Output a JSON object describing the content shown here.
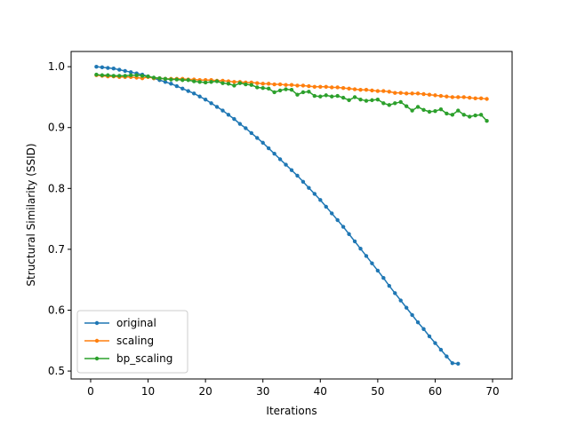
{
  "chart_data": {
    "type": "line",
    "title": "",
    "xlabel": "Iterations",
    "ylabel": "Structural Similarity (SSID)",
    "xlim": [
      -3.4,
      73.4
    ],
    "ylim": [
      0.487,
      1.025
    ],
    "xticks": [
      0,
      10,
      20,
      30,
      40,
      50,
      60,
      70
    ],
    "yticks": [
      0.5,
      0.6,
      0.7,
      0.8,
      0.9,
      1.0
    ],
    "ytick_labels": [
      "0.5",
      "0.6",
      "0.7",
      "0.8",
      "0.9",
      "1.0"
    ],
    "grid": false,
    "legend_position": "lower-left",
    "series": [
      {
        "name": "original",
        "color": "#1f77b4",
        "x": [
          1,
          2,
          3,
          4,
          5,
          6,
          7,
          8,
          9,
          10,
          11,
          12,
          13,
          14,
          15,
          16,
          17,
          18,
          19,
          20,
          21,
          22,
          23,
          24,
          25,
          26,
          27,
          28,
          29,
          30,
          31,
          32,
          33,
          34,
          35,
          36,
          37,
          38,
          39,
          40,
          41,
          42,
          43,
          44,
          45,
          46,
          47,
          48,
          49,
          50,
          51,
          52,
          53,
          54,
          55,
          56,
          57,
          58,
          59,
          60,
          61,
          62,
          63,
          64
        ],
        "y": [
          1.0,
          0.999,
          0.998,
          0.997,
          0.995,
          0.993,
          0.991,
          0.989,
          0.987,
          0.984,
          0.981,
          0.978,
          0.975,
          0.972,
          0.968,
          0.964,
          0.96,
          0.956,
          0.951,
          0.946,
          0.94,
          0.934,
          0.928,
          0.921,
          0.914,
          0.906,
          0.899,
          0.891,
          0.883,
          0.875,
          0.866,
          0.857,
          0.848,
          0.839,
          0.83,
          0.821,
          0.811,
          0.801,
          0.791,
          0.781,
          0.77,
          0.759,
          0.748,
          0.737,
          0.725,
          0.713,
          0.701,
          0.689,
          0.677,
          0.665,
          0.653,
          0.64,
          0.628,
          0.616,
          0.604,
          0.592,
          0.58,
          0.569,
          0.557,
          0.546,
          0.535,
          0.524,
          0.513,
          0.512
        ]
      },
      {
        "name": "scaling",
        "color": "#ff7f0e",
        "x": [
          1,
          2,
          3,
          4,
          5,
          6,
          7,
          8,
          9,
          10,
          11,
          12,
          13,
          14,
          15,
          16,
          17,
          18,
          19,
          20,
          21,
          22,
          23,
          24,
          25,
          26,
          27,
          28,
          29,
          30,
          31,
          32,
          33,
          34,
          35,
          36,
          37,
          38,
          39,
          40,
          41,
          42,
          43,
          44,
          45,
          46,
          47,
          48,
          49,
          50,
          51,
          52,
          53,
          54,
          55,
          56,
          57,
          58,
          59,
          60,
          61,
          62,
          63,
          64,
          65,
          66,
          67,
          68,
          69
        ],
        "y": [
          0.986,
          0.985,
          0.984,
          0.984,
          0.983,
          0.983,
          0.983,
          0.982,
          0.981,
          0.983,
          0.981,
          0.981,
          0.98,
          0.98,
          0.98,
          0.98,
          0.979,
          0.979,
          0.978,
          0.978,
          0.978,
          0.977,
          0.977,
          0.976,
          0.975,
          0.975,
          0.974,
          0.974,
          0.973,
          0.972,
          0.972,
          0.971,
          0.971,
          0.97,
          0.97,
          0.969,
          0.969,
          0.968,
          0.967,
          0.967,
          0.967,
          0.966,
          0.966,
          0.965,
          0.964,
          0.963,
          0.962,
          0.962,
          0.961,
          0.96,
          0.96,
          0.959,
          0.957,
          0.957,
          0.956,
          0.956,
          0.956,
          0.955,
          0.954,
          0.953,
          0.952,
          0.951,
          0.95,
          0.95,
          0.95,
          0.949,
          0.948,
          0.948,
          0.947
        ]
      },
      {
        "name": "bp_scaling",
        "color": "#2ca02c",
        "x": [
          1,
          2,
          3,
          4,
          5,
          6,
          7,
          8,
          9,
          10,
          11,
          12,
          13,
          14,
          15,
          16,
          17,
          18,
          19,
          20,
          21,
          22,
          23,
          24,
          25,
          26,
          27,
          28,
          29,
          30,
          31,
          32,
          33,
          34,
          35,
          36,
          37,
          38,
          39,
          40,
          41,
          42,
          43,
          44,
          45,
          46,
          47,
          48,
          49,
          50,
          51,
          52,
          53,
          54,
          55,
          56,
          57,
          58,
          59,
          60,
          61,
          62,
          63,
          64,
          65,
          66,
          67,
          68,
          69
        ],
        "y": [
          0.987,
          0.986,
          0.986,
          0.985,
          0.985,
          0.985,
          0.986,
          0.986,
          0.985,
          0.984,
          0.982,
          0.981,
          0.98,
          0.979,
          0.979,
          0.978,
          0.978,
          0.976,
          0.975,
          0.974,
          0.975,
          0.976,
          0.973,
          0.972,
          0.969,
          0.973,
          0.971,
          0.97,
          0.966,
          0.965,
          0.964,
          0.958,
          0.961,
          0.963,
          0.962,
          0.954,
          0.958,
          0.959,
          0.952,
          0.951,
          0.953,
          0.951,
          0.952,
          0.949,
          0.945,
          0.95,
          0.946,
          0.944,
          0.945,
          0.946,
          0.94,
          0.937,
          0.94,
          0.942,
          0.935,
          0.928,
          0.934,
          0.929,
          0.926,
          0.927,
          0.93,
          0.923,
          0.921,
          0.928,
          0.921,
          0.918,
          0.92,
          0.921,
          0.911
        ]
      }
    ]
  }
}
